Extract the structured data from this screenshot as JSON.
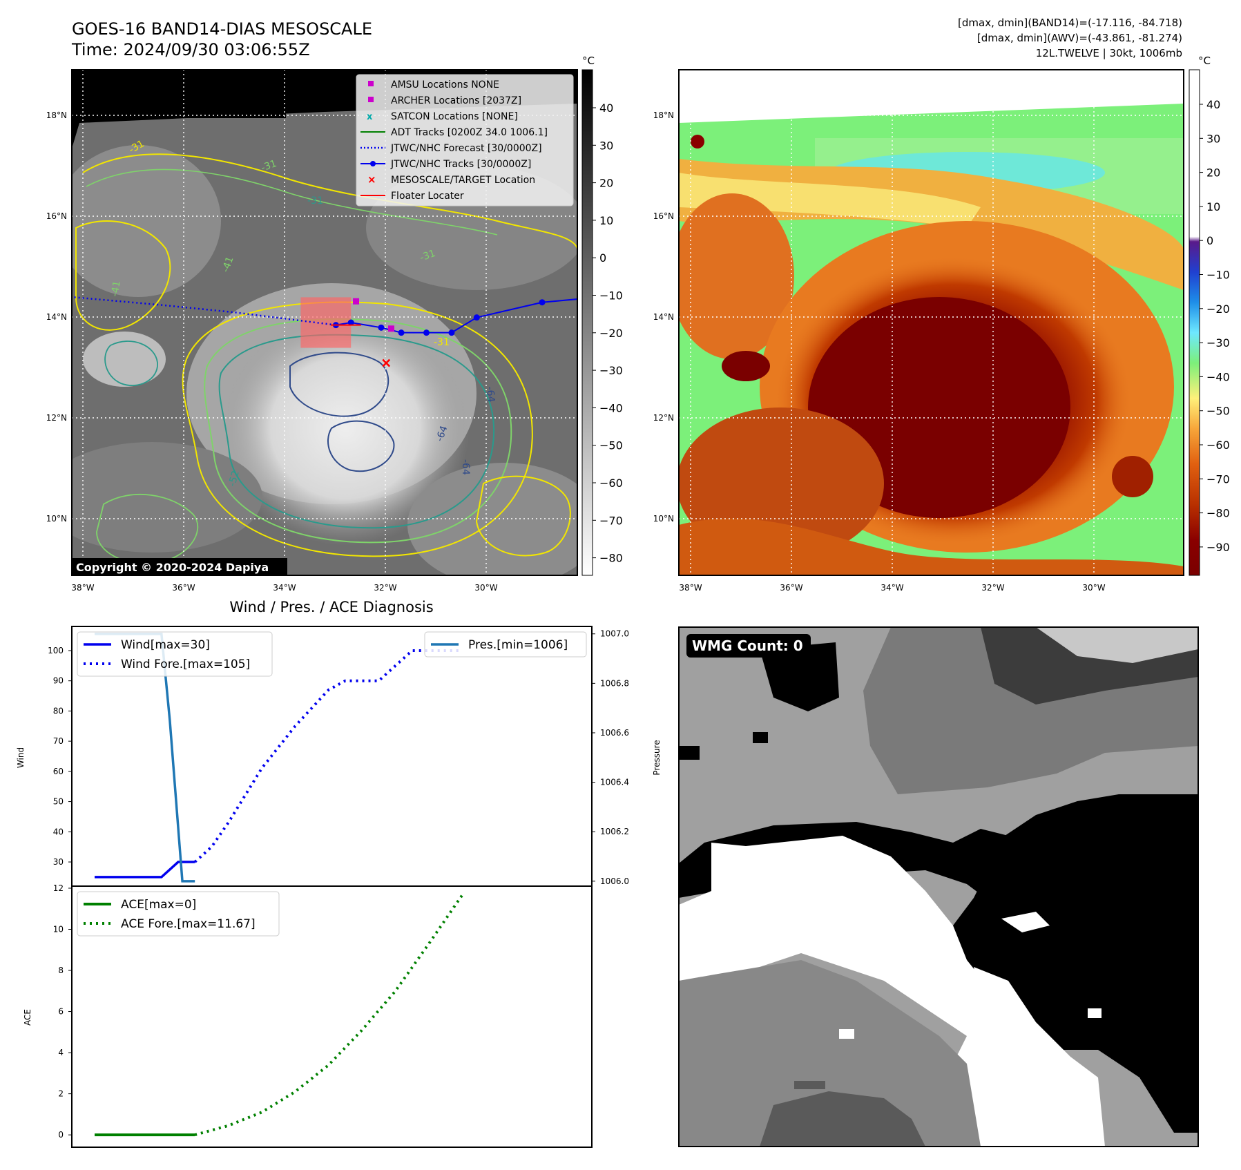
{
  "header": {
    "title": "GOES-16 BAND14-DIAS MESOSCALE",
    "time": "Time: 2024/09/30 03:06:55Z",
    "stats_band14": "[dmax, dmin](BAND14)=(-17.116, -84.718)",
    "stats_awv": "[dmax, dmin](AWV)=(-43.861, -81.274)",
    "storm": "12L.TWELVE | 30kt, 1006mb"
  },
  "colors": {
    "wind": "#0000ee",
    "pressure": "#1f77b4",
    "ace": "#008000",
    "track": "#0000ee",
    "floater": "#ff0000",
    "amsu": "#cc00cc",
    "satcon": "#00aaaa",
    "contour_31": "#f2e600",
    "contour_41": "#7fd36a",
    "contour_52": "#2a9a8c",
    "contour_64": "#2f4a8a"
  },
  "map_left": {
    "lat_labels": [
      "18°N",
      "16°N",
      "14°N",
      "12°N",
      "10°N"
    ],
    "lon_labels": [
      "38°W",
      "36°W",
      "34°W",
      "32°W",
      "30°W"
    ],
    "colorbar_unit": "°C",
    "colorbar_ticks": [
      "40",
      "30",
      "20",
      "10",
      "0",
      "−10",
      "−20",
      "−30",
      "−40",
      "−50",
      "−60",
      "−70",
      "−80"
    ],
    "copyright": "Copyright © 2020-2024 Dapiya",
    "contour_labels": [
      "-31",
      "-31",
      "-31",
      "-31",
      "-41",
      "-41",
      "-52",
      "-64",
      "-64",
      "-64",
      "-31"
    ],
    "legend": [
      "AMSU Locations NONE",
      "ARCHER Locations [2037Z]",
      "SATCON Locations [NONE]",
      "ADT Tracks [0200Z 34.0 1006.1]",
      "JTWC/NHC Forecast [30/0000Z]",
      "JTWC/NHC Tracks [30/0000Z]",
      "MESOSCALE/TARGET Location",
      "Floater Locater"
    ],
    "track": {
      "lons": [
        -33.0,
        -32.7,
        -32.1,
        -31.7,
        -31.2,
        -30.7,
        -30.2,
        -28.9,
        -27.8
      ],
      "lats": [
        13.85,
        13.9,
        13.8,
        13.7,
        13.7,
        13.7,
        14.0,
        14.3,
        14.4
      ]
    },
    "forecast": {
      "lons": [
        -38.2,
        -36.5,
        -35.0,
        -33.8,
        -33.0
      ],
      "lats": [
        14.4,
        14.25,
        14.1,
        13.95,
        13.85
      ]
    },
    "archer": {
      "lon": -32.6,
      "lat": 14.32
    },
    "amsu_marker": {
      "lon": -31.9,
      "lat": 13.78
    },
    "target": {
      "lon": -32.0,
      "lat": 13.1
    },
    "floater_box": {
      "lon_min": -33.7,
      "lon_max": -32.7,
      "lat_min": 13.4,
      "lat_max": 14.4
    }
  },
  "map_right": {
    "lat_labels": [
      "18°N",
      "16°N",
      "14°N",
      "12°N",
      "10°N"
    ],
    "lon_labels": [
      "38°W",
      "36°W",
      "34°W",
      "32°W",
      "30°W"
    ],
    "colorbar_unit": "°C",
    "colorbar_ticks": [
      "40",
      "30",
      "20",
      "10",
      "0",
      "−10",
      "−20",
      "−30",
      "−40",
      "−50",
      "−60",
      "−70",
      "−80",
      "−90"
    ]
  },
  "wmg": {
    "label": "WMG Count: 0"
  },
  "chart_data": [
    {
      "type": "line",
      "title": "Wind / Pres. / ACE Diagnosis",
      "ylabel": "Wind",
      "y2label": "Pressure",
      "ylim": [
        22,
        108
      ],
      "y2lim": [
        1005.98,
        1007.03
      ],
      "yticks": [
        "30",
        "40",
        "50",
        "60",
        "70",
        "80",
        "90",
        "100"
      ],
      "y2ticks": [
        "1006.0",
        "1006.2",
        "1006.4",
        "1006.6",
        "1006.8",
        "1007.0"
      ],
      "legend": [
        "Wind[max=30]",
        "Wind Fore.[max=105]",
        "Pres.[min=1006]"
      ],
      "series": [
        {
          "name": "Wind[max=30]",
          "x": [
            0,
            1,
            2,
            3,
            4,
            5,
            6
          ],
          "values": [
            25,
            25,
            25,
            25,
            25,
            30,
            30
          ]
        },
        {
          "name": "Wind Fore.[max=105]",
          "x": [
            6,
            7,
            8,
            9,
            10,
            11,
            12,
            13,
            14,
            15,
            16,
            17,
            18,
            19,
            20,
            21,
            22
          ],
          "values": [
            30,
            35,
            43,
            52,
            61,
            68,
            75,
            81,
            87,
            90,
            90,
            90,
            95,
            100,
            100,
            100,
            100
          ]
        },
        {
          "name": "Pres.[min=1006]",
          "axis": "right",
          "x": [
            0,
            1,
            2,
            3,
            4,
            4.5,
            5.25,
            5.5,
            6
          ],
          "values": [
            1007.0,
            1007.0,
            1007.0,
            1007.0,
            1007.0,
            1006.65,
            1006.0,
            1006.0,
            1006.0
          ]
        }
      ]
    },
    {
      "type": "line",
      "ylabel": "ACE",
      "ylim": [
        -0.6,
        12.1
      ],
      "yticks": [
        "0",
        "2",
        "4",
        "6",
        "8",
        "10",
        "12"
      ],
      "legend": [
        "ACE[max=0]",
        "ACE Fore.[max=11.67]"
      ],
      "series": [
        {
          "name": "ACE[max=0]",
          "x": [
            0,
            6
          ],
          "values": [
            0,
            0
          ]
        },
        {
          "name": "ACE Fore.[max=11.67]",
          "x": [
            6,
            8,
            10,
            12,
            14,
            16,
            18,
            20,
            22
          ],
          "values": [
            0,
            0.45,
            1.1,
            2.1,
            3.4,
            5.1,
            7.0,
            9.3,
            11.67
          ]
        }
      ]
    }
  ]
}
